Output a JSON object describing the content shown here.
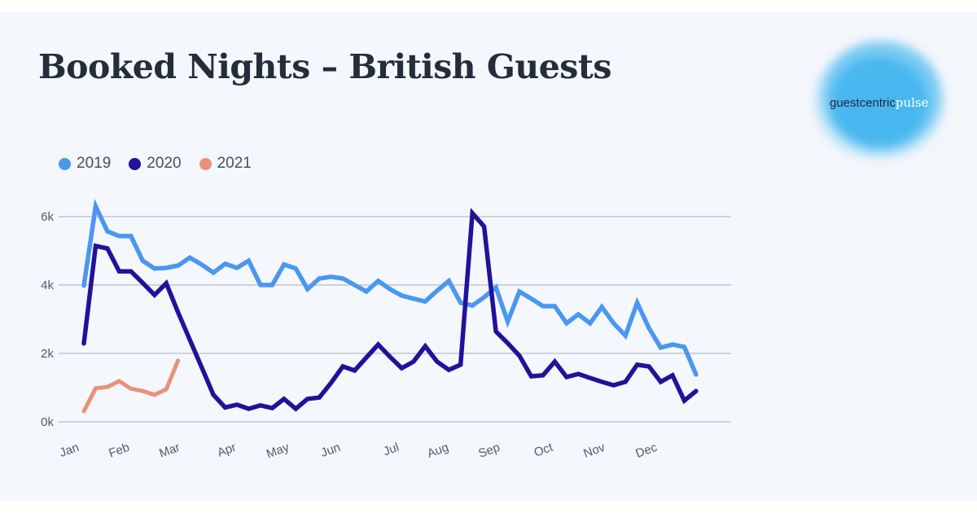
{
  "title": "Booked Nights – British Guests",
  "logo": {
    "part1": "guestcentric",
    "part2": "pulse"
  },
  "colors": {
    "2019": "#4a97f0",
    "2020": "#22119a",
    "2021": "#e8917a"
  },
  "chart_data": {
    "type": "line",
    "title": "Booked Nights – British Guests",
    "xlabel": "",
    "ylabel": "",
    "ylim": [
      0,
      6000
    ],
    "yticks": [
      0,
      2000,
      4000,
      6000
    ],
    "ytick_labels": [
      "0k",
      "2k",
      "4k",
      "6k"
    ],
    "xtick_labels": [
      "Jan",
      "Feb",
      "Mar",
      "Apr",
      "May",
      "Jun",
      "Jul",
      "Aug",
      "Sep",
      "Oct",
      "Nov",
      "Dec"
    ],
    "x_unit": "week of year (0-52)",
    "grid": true,
    "legend": "top-left",
    "series": [
      {
        "name": "2019",
        "values": [
          3980,
          6300,
          5570,
          5430,
          5430,
          4710,
          4480,
          4500,
          4570,
          4800,
          4600,
          4360,
          4620,
          4500,
          4710,
          4000,
          4000,
          4600,
          4480,
          3880,
          4190,
          4240,
          4190,
          4000,
          3810,
          4120,
          3880,
          3690,
          3600,
          3520,
          3830,
          4120,
          3480,
          3400,
          3640,
          3930,
          2930,
          3810,
          3600,
          3380,
          3380,
          2880,
          3140,
          2880,
          3360,
          2880,
          2520,
          3480,
          2740,
          2170,
          2260,
          2190,
          1380
        ]
      },
      {
        "name": "2020",
        "values": [
          2290,
          5140,
          5070,
          4400,
          4400,
          4060,
          3710,
          4050,
          3200,
          2400,
          1600,
          790,
          420,
          500,
          380,
          480,
          400,
          670,
          380,
          670,
          710,
          1140,
          1620,
          1500,
          1880,
          2260,
          1900,
          1570,
          1760,
          2210,
          1760,
          1520,
          1670,
          6100,
          5710,
          2640,
          2300,
          1930,
          1330,
          1360,
          1760,
          1310,
          1400,
          1280,
          1170,
          1070,
          1170,
          1670,
          1620,
          1170,
          1360,
          620,
          900
        ]
      },
      {
        "name": "2021",
        "values": [
          310,
          980,
          1020,
          1190,
          970,
          900,
          790,
          950,
          1790
        ]
      }
    ]
  }
}
